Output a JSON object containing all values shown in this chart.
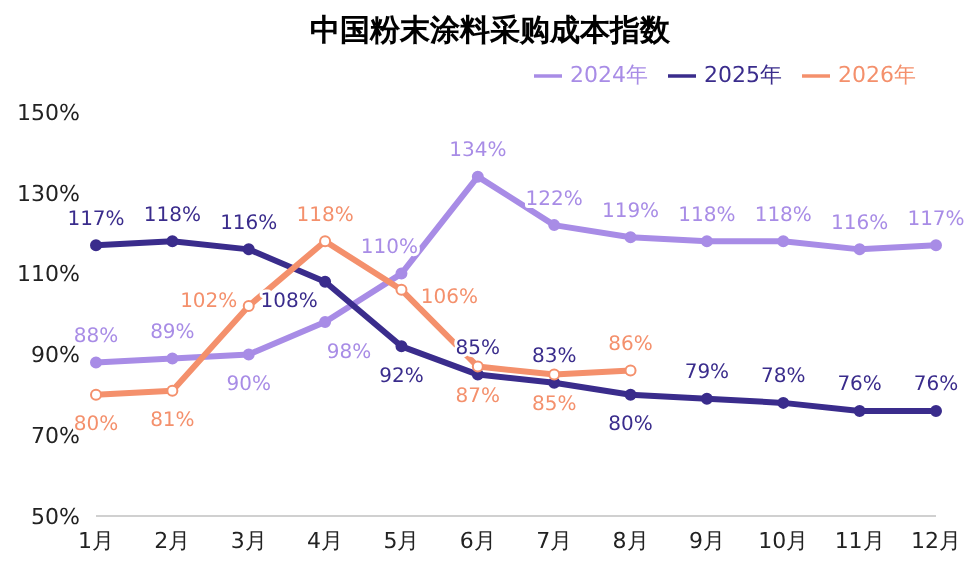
{
  "chart_data": {
    "type": "line",
    "title": "中国粉末涂料采购成本指数",
    "categories": [
      "1月",
      "2月",
      "3月",
      "4月",
      "5月",
      "6月",
      "7月",
      "8月",
      "9月",
      "10月",
      "11月",
      "12月"
    ],
    "series": [
      {
        "name": "2024年",
        "color": "#a88ce6",
        "values": [
          88,
          89,
          90,
          98,
          110,
          134,
          122,
          119,
          118,
          118,
          116,
          117
        ],
        "value_labels": [
          "88%",
          "89%",
          "90%",
          "98%",
          "110%",
          "134%",
          "122%",
          "119%",
          "118%",
          "118%",
          "116%",
          "117%"
        ]
      },
      {
        "name": "2025年",
        "color": "#3a2c8c",
        "values": [
          117,
          118,
          116,
          108,
          92,
          85,
          83,
          80,
          79,
          78,
          76,
          76
        ],
        "value_labels": [
          "117%",
          "118%",
          "116%",
          "108%",
          "92%",
          "85%",
          "83%",
          "80%",
          "79%",
          "78%",
          "76%",
          "76%"
        ]
      },
      {
        "name": "2026年",
        "color": "#f4906c",
        "values": [
          80,
          81,
          102,
          118,
          106,
          87,
          85,
          86,
          null,
          null,
          null,
          null
        ],
        "value_labels": [
          "80%",
          "81%",
          "102%",
          "118%",
          "106%",
          "87%",
          "85%",
          "86%",
          null,
          null,
          null,
          null
        ]
      }
    ],
    "ylim": [
      50,
      150
    ],
    "yticks": [
      {
        "value": 50,
        "label": "50%"
      },
      {
        "value": 70,
        "label": "70%"
      },
      {
        "value": 90,
        "label": "90%"
      },
      {
        "value": 110,
        "label": "110%"
      },
      {
        "value": 130,
        "label": "130%"
      },
      {
        "value": 150,
        "label": "150%"
      }
    ],
    "grid": false,
    "legend": "top right",
    "marker": "circle",
    "line_style": "solid"
  }
}
